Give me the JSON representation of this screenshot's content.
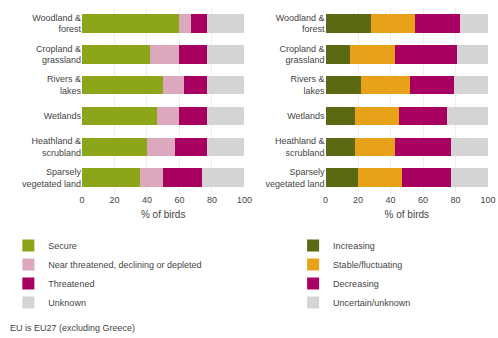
{
  "chart_data": [
    {
      "type": "bar",
      "orientation": "horizontal",
      "stacked": true,
      "categories": [
        "Woodland &\nforest",
        "Cropland &\ngrassland",
        "Rivers &\nlakes",
        "Wetlands",
        "Heathland &\nscrubland",
        "Sparsely\nvegetated land"
      ],
      "series": [
        {
          "name": "Secure",
          "color": "#8da619",
          "values": [
            60,
            42,
            50,
            46,
            40,
            36
          ]
        },
        {
          "name": "Near threatened, declining or depleted",
          "color": "#dca8be",
          "values": [
            7,
            18,
            13,
            14,
            17,
            14
          ]
        },
        {
          "name": "Threatened",
          "color": "#a80060",
          "values": [
            10,
            17,
            14,
            17,
            20,
            24
          ]
        },
        {
          "name": "Unknown",
          "color": "#d4d4d4",
          "values": [
            23,
            23,
            23,
            23,
            23,
            26
          ]
        }
      ],
      "xlabel": "% of birds",
      "xlim": [
        0,
        100
      ],
      "xticks": [
        0,
        20,
        40,
        60,
        80,
        100
      ],
      "grid": true,
      "legend": "bottom",
      "annotations": [
        "EU is EU27 (excluding Greece)"
      ]
    },
    {
      "type": "bar",
      "orientation": "horizontal",
      "stacked": true,
      "categories": [
        "Woodland &\nforest",
        "Cropland &\ngrassland",
        "Rivers &\nlakes",
        "Wetlands",
        "Heathland &\nscrubland",
        "Sparsely\nvegetated land"
      ],
      "series": [
        {
          "name": "Increasing",
          "color": "#5a6912",
          "values": [
            28,
            15,
            22,
            18,
            18,
            20
          ]
        },
        {
          "name": "Stable/fluctuating",
          "color": "#e8a21a",
          "values": [
            27,
            28,
            30,
            27,
            25,
            27
          ]
        },
        {
          "name": "Decreasing",
          "color": "#a80060",
          "values": [
            28,
            38,
            27,
            30,
            34,
            30
          ]
        },
        {
          "name": "Uncertain/unknown",
          "color": "#d4d4d4",
          "values": [
            17,
            19,
            21,
            25,
            23,
            23
          ]
        }
      ],
      "xlabel": "% of birds",
      "xlim": [
        0,
        100
      ],
      "xticks": [
        0,
        20,
        40,
        60,
        80,
        100
      ],
      "grid": true,
      "legend": "bottom"
    }
  ]
}
